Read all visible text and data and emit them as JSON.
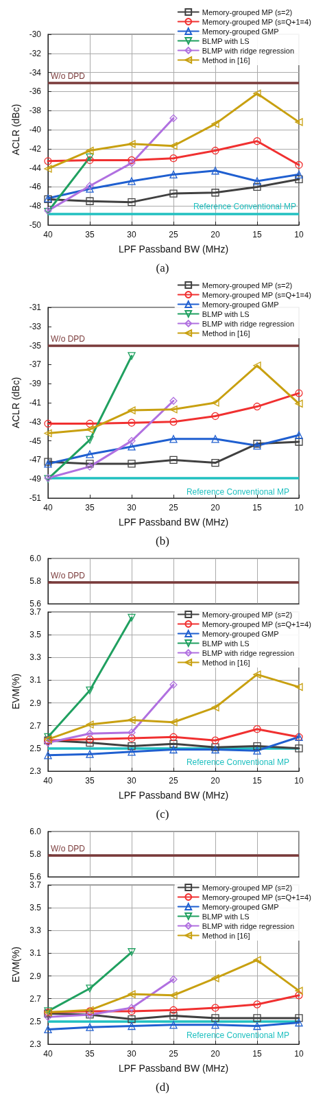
{
  "chart_data": [
    {
      "type": "line",
      "title": "(a)",
      "xlabel": "LPF Passband BW (MHz)",
      "ylabel": "ACLR (dBc)",
      "x": [
        40,
        35,
        30,
        25,
        20,
        15,
        10
      ],
      "xlim": [
        40,
        10
      ],
      "xticks": [
        40,
        35,
        30,
        25,
        20,
        15,
        10
      ],
      "ylim": [
        -50,
        -30
      ],
      "yticks": [
        -50,
        -48,
        -46,
        -44,
        -42,
        -40,
        -38,
        -36,
        -34,
        -32,
        -30
      ],
      "grid": true,
      "legend": "top right",
      "line_style": "solid",
      "series": [
        {
          "name": "Memory-grouped MP (s=2)",
          "color": "#404040",
          "marker": "square",
          "values": [
            -47.3,
            -47.5,
            -47.6,
            -46.7,
            -46.6,
            -46.0,
            -45.2
          ]
        },
        {
          "name": "Memory-grouped MP (s=Q+1=4)",
          "color": "#f03030",
          "marker": "circle",
          "values": [
            -43.3,
            -43.2,
            -43.2,
            -43.0,
            -42.2,
            -41.2,
            -43.7
          ]
        },
        {
          "name": "Memory-grouped GMP",
          "color": "#1f5fd0",
          "marker": "triangle",
          "values": [
            -47.2,
            -46.2,
            -45.4,
            -44.7,
            -44.3,
            -45.4,
            -44.7
          ]
        },
        {
          "name": "BLMP with LS",
          "color": "#20a060",
          "marker": "triangle-down",
          "values": [
            -48.6,
            -42.9,
            null,
            null,
            null,
            null,
            null
          ]
        },
        {
          "name": "BLMP with ridge regression",
          "color": "#b070e0",
          "marker": "diamond",
          "values": [
            -48.5,
            -45.9,
            -43.5,
            -38.8,
            null,
            null,
            null
          ]
        },
        {
          "name": "Method in [16]",
          "color": "#c8a010",
          "marker": "triangle-left",
          "values": [
            -44.1,
            -42.2,
            -41.5,
            -41.7,
            -39.4,
            -36.2,
            -39.2
          ]
        }
      ],
      "ref_lines": [
        {
          "axis": "y",
          "value": -35.1,
          "label": "W/o DPD",
          "color": "#7a3a3a"
        },
        {
          "axis": "y",
          "value": -48.8,
          "label": "Reference Conventional MP",
          "color": "#20c0c0"
        }
      ]
    },
    {
      "type": "line",
      "title": "(b)",
      "xlabel": "LPF Passband BW (MHz)",
      "ylabel": "ACLR (dBc)",
      "x": [
        40,
        35,
        30,
        25,
        20,
        15,
        10
      ],
      "xlim": [
        40,
        10
      ],
      "xticks": [
        40,
        35,
        30,
        25,
        20,
        15,
        10
      ],
      "ylim": [
        -51,
        -31
      ],
      "yticks": [
        -51,
        -49,
        -47,
        -45,
        -43,
        -41,
        -39,
        -37,
        -35,
        -33,
        -31
      ],
      "grid": false,
      "legend": "top right",
      "line_style": "solid",
      "series": [
        {
          "name": "Memory-grouped MP (s=2)",
          "color": "#404040",
          "marker": "square",
          "values": [
            -47.2,
            -47.4,
            -47.4,
            -47.0,
            -47.3,
            -45.3,
            -45.1
          ]
        },
        {
          "name": "Memory-grouped MP (s=Q+1=4)",
          "color": "#f03030",
          "marker": "circle",
          "values": [
            -43.2,
            -43.2,
            -43.1,
            -43.0,
            -42.4,
            -41.4,
            -40.0
          ]
        },
        {
          "name": "Memory-grouped GMP",
          "color": "#1f5fd0",
          "marker": "triangle",
          "values": [
            -47.4,
            -46.4,
            -45.6,
            -44.8,
            -44.8,
            -45.5,
            -44.4
          ]
        },
        {
          "name": "BLMP with LS",
          "color": "#20a060",
          "marker": "triangle-down",
          "values": [
            -49.0,
            -44.9,
            -36.1,
            null,
            null,
            null,
            null
          ]
        },
        {
          "name": "BLMP with ridge regression",
          "color": "#b070e0",
          "marker": "diamond",
          "values": [
            -48.9,
            -47.7,
            -45.0,
            -40.8,
            null,
            null,
            null
          ]
        },
        {
          "name": "Method in [16]",
          "color": "#c8a010",
          "marker": "triangle-left",
          "values": [
            -44.2,
            -43.8,
            -41.8,
            -41.7,
            -41.0,
            -37.1,
            -41.1
          ]
        }
      ],
      "ref_lines": [
        {
          "axis": "y",
          "value": -35.0,
          "label": "W/o DPD",
          "color": "#7a3a3a"
        },
        {
          "axis": "y",
          "value": -48.9,
          "label": "Reference Conventional MP",
          "color": "#20c0c0"
        }
      ]
    },
    {
      "type": "line",
      "xlim": [
        40,
        10
      ],
      "xticks": [
        40,
        35,
        30,
        25,
        20,
        15,
        10
      ],
      "ylim": [
        5.6,
        6.0
      ],
      "yticks": [
        5.6,
        5.8,
        {
          "value": 6.0,
          "label": "6.0"
        }
      ],
      "grid": true,
      "tick_labels": "y",
      "ref_lines": [
        {
          "axis": "y",
          "value": 5.79,
          "label": "W/o DPD",
          "color": "#7a3a3a"
        }
      ]
    },
    {
      "type": "line",
      "title": "(c)",
      "xlabel": "LPF Passband BW (MHz)",
      "ylabel": "EVM(%)",
      "x": [
        40,
        35,
        30,
        25,
        20,
        15,
        10
      ],
      "xlim": [
        40,
        10
      ],
      "xticks": [
        40,
        35,
        30,
        25,
        20,
        15,
        10
      ],
      "ylim": [
        2.3,
        3.7
      ],
      "yticks": [
        2.3,
        2.5,
        2.7,
        2.9,
        3.1,
        3.3,
        3.5,
        3.7
      ],
      "grid": true,
      "legend": "top right",
      "line_style": "solid",
      "series": [
        {
          "name": "Memory-grouped MP (s=2)",
          "color": "#404040",
          "marker": "square",
          "values": [
            2.57,
            2.55,
            2.52,
            2.54,
            2.51,
            2.52,
            2.5
          ]
        },
        {
          "name": "Memory-grouped MP (s=Q+1=4)",
          "color": "#f03030",
          "marker": "circle",
          "values": [
            2.57,
            2.58,
            2.59,
            2.6,
            2.57,
            2.67,
            2.6
          ]
        },
        {
          "name": "Memory-grouped GMP",
          "color": "#1f5fd0",
          "marker": "triangle",
          "values": [
            2.44,
            2.45,
            2.47,
            2.49,
            2.49,
            2.48,
            2.6
          ]
        },
        {
          "name": "BLMP with LS",
          "color": "#20a060",
          "marker": "triangle-down",
          "values": [
            2.6,
            3.01,
            3.65,
            null,
            null,
            null,
            null
          ]
        },
        {
          "name": "BLMP with ridge regression",
          "color": "#b070e0",
          "marker": "diamond",
          "values": [
            2.55,
            2.63,
            2.64,
            3.06,
            null,
            null,
            null
          ]
        },
        {
          "name": "Method in [16]",
          "color": "#c8a010",
          "marker": "triangle-left",
          "values": [
            2.58,
            2.71,
            2.75,
            2.73,
            2.86,
            3.15,
            3.04
          ]
        }
      ],
      "ref_lines": [
        {
          "axis": "y",
          "value": 2.5,
          "label": "Reference Conventional MP",
          "color": "#20c0c0"
        }
      ]
    },
    {
      "type": "line",
      "xlim": [
        40,
        10
      ],
      "xticks": [
        40,
        35,
        30,
        25,
        20,
        15,
        10
      ],
      "ylim": [
        5.6,
        6.0
      ],
      "yticks": [
        5.6,
        5.8,
        {
          "value": 6.0,
          "label": "6.0"
        }
      ],
      "grid": true,
      "tick_labels": "y",
      "ref_lines": [
        {
          "axis": "y",
          "value": 5.79,
          "label": "W/o DPD",
          "color": "#7a3a3a"
        }
      ]
    },
    {
      "type": "line",
      "title": "(d)",
      "xlabel": "LPF Passband BW (MHz)",
      "ylabel": "EVM(%)",
      "x": [
        40,
        35,
        30,
        25,
        20,
        15,
        10
      ],
      "xlim": [
        40,
        10
      ],
      "xticks": [
        40,
        35,
        30,
        25,
        20,
        15,
        10
      ],
      "ylim": [
        2.3,
        3.7
      ],
      "yticks": [
        2.3,
        2.5,
        2.7,
        2.9,
        3.1,
        3.3,
        3.5,
        3.7
      ],
      "grid": true,
      "legend": "top right",
      "line_style": "solid",
      "series": [
        {
          "name": "Memory-grouped MP (s=2)",
          "color": "#404040",
          "marker": "square",
          "values": [
            2.57,
            2.56,
            2.52,
            2.55,
            2.53,
            2.53,
            2.53
          ]
        },
        {
          "name": "Memory-grouped MP (s=Q+1=4)",
          "color": "#f03030",
          "marker": "circle",
          "values": [
            2.58,
            2.59,
            2.59,
            2.6,
            2.62,
            2.65,
            2.73
          ]
        },
        {
          "name": "Memory-grouped GMP",
          "color": "#1f5fd0",
          "marker": "triangle",
          "values": [
            2.43,
            2.45,
            2.46,
            2.47,
            2.47,
            2.46,
            2.49
          ]
        },
        {
          "name": "BLMP with LS",
          "color": "#20a060",
          "marker": "triangle-down",
          "values": [
            2.59,
            2.79,
            3.11,
            null,
            null,
            null,
            null
          ]
        },
        {
          "name": "BLMP with ridge regression",
          "color": "#b070e0",
          "marker": "diamond",
          "values": [
            2.54,
            2.56,
            2.62,
            2.87,
            null,
            null,
            null
          ]
        },
        {
          "name": "Method in [16]",
          "color": "#c8a010",
          "marker": "triangle-left",
          "values": [
            2.58,
            2.6,
            2.74,
            2.73,
            2.88,
            3.04,
            2.77
          ]
        }
      ],
      "ref_lines": [
        {
          "axis": "y",
          "value": 2.5,
          "label": "Reference Conventional MP",
          "color": "#20c0c0"
        }
      ]
    }
  ]
}
